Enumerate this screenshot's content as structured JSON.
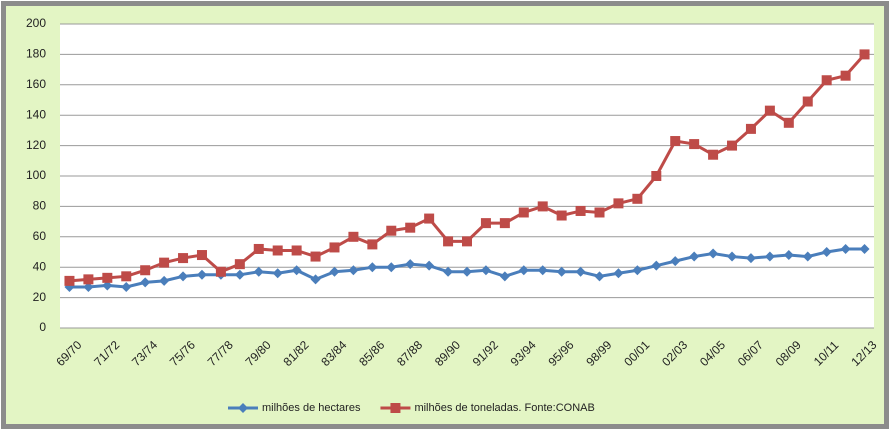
{
  "chart_data": {
    "type": "line",
    "categories": [
      "69/70",
      null,
      "71/72",
      null,
      "73/74",
      null,
      "75/76",
      null,
      "77/78",
      null,
      "79/80",
      null,
      "81/82",
      null,
      "83/84",
      null,
      "85/86",
      null,
      "87/88",
      null,
      "89/90",
      null,
      "91/92",
      null,
      "93/94",
      null,
      "95/96",
      null,
      "98/99",
      null,
      "00/01",
      null,
      "02/03",
      null,
      "04/05",
      null,
      "06/07",
      null,
      "08/09",
      null,
      "10/11",
      null,
      "12/13"
    ],
    "series": [
      {
        "name": "milhões de hectares",
        "color": "#4a7ebb",
        "marker": "diamond",
        "values": [
          27,
          27,
          28,
          27,
          30,
          31,
          34,
          35,
          35,
          35,
          37,
          36,
          38,
          32,
          37,
          38,
          40,
          40,
          42,
          41,
          37,
          37,
          38,
          34,
          38,
          38,
          37,
          37,
          34,
          36,
          38,
          41,
          44,
          47,
          49,
          47,
          46,
          47,
          48,
          47,
          50,
          52,
          52
        ]
      },
      {
        "name": "milhões de toneladas. Fonte:CONAB",
        "color": "#be4b48",
        "marker": "square",
        "values": [
          31,
          32,
          33,
          34,
          38,
          43,
          46,
          48,
          37,
          42,
          52,
          51,
          51,
          47,
          53,
          60,
          55,
          64,
          66,
          72,
          57,
          57,
          69,
          69,
          76,
          80,
          74,
          77,
          76,
          82,
          85,
          100,
          123,
          121,
          114,
          120,
          131,
          143,
          135,
          149,
          163,
          166,
          180
        ]
      }
    ],
    "ylim": [
      0,
      200
    ],
    "yticks": [
      0,
      20,
      40,
      60,
      80,
      100,
      120,
      140,
      160,
      180,
      200
    ],
    "grid": true,
    "legend": "bottom"
  }
}
